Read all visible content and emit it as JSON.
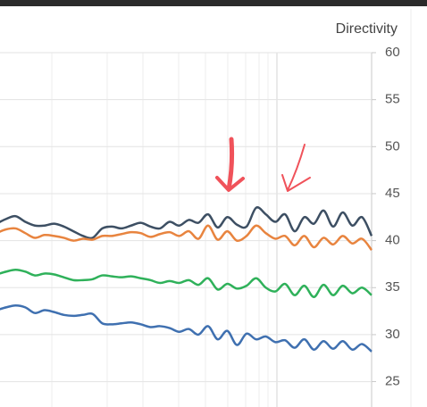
{
  "chart_data": {
    "type": "line",
    "title": "Directivity",
    "ylim": [
      22.3,
      60
    ],
    "yticks": [
      25,
      30,
      35,
      40,
      45,
      50,
      55,
      60
    ],
    "grid": true,
    "series": [
      {
        "color": "#3d4f63",
        "values": [
          41.8,
          42.3,
          42.6,
          42.0,
          41.6,
          41.6,
          41.8,
          41.5,
          41.0,
          40.5,
          40.3,
          41.3,
          41.5,
          41.3,
          41.6,
          41.9,
          41.5,
          41.3,
          42.0,
          41.6,
          42.2,
          41.9,
          42.8,
          41.4,
          42.5,
          41.7,
          41.5,
          43.5,
          42.8,
          42.0,
          42.8,
          41.0,
          42.5,
          41.8,
          43.2,
          41.5,
          43.0,
          41.6,
          42.5,
          40.5
        ]
      },
      {
        "color": "#e8843f",
        "values": [
          40.8,
          41.2,
          41.3,
          40.8,
          40.3,
          40.6,
          40.5,
          40.3,
          40.0,
          40.2,
          40.1,
          40.5,
          40.5,
          40.7,
          40.9,
          40.8,
          40.4,
          40.7,
          40.9,
          40.5,
          41.0,
          40.2,
          41.6,
          40.1,
          41.0,
          40.0,
          40.5,
          41.6,
          40.8,
          40.2,
          40.5,
          39.5,
          40.5,
          39.3,
          40.3,
          39.6,
          40.5,
          39.7,
          40.2,
          39.0
        ]
      },
      {
        "color": "#2fb15a",
        "values": [
          36.4,
          36.7,
          36.9,
          36.7,
          36.3,
          36.5,
          36.4,
          36.1,
          35.8,
          35.8,
          35.9,
          36.3,
          36.2,
          36.1,
          36.2,
          36.0,
          35.8,
          35.5,
          35.7,
          35.5,
          35.8,
          35.3,
          36.0,
          34.8,
          35.4,
          34.9,
          35.2,
          36.0,
          35.0,
          34.6,
          35.4,
          34.2,
          35.2,
          34.0,
          35.3,
          34.2,
          35.2,
          34.4,
          35.0,
          34.2
        ]
      },
      {
        "color": "#3f70b0",
        "values": [
          32.6,
          32.9,
          33.1,
          32.9,
          32.3,
          32.6,
          32.4,
          32.1,
          32.0,
          32.1,
          32.2,
          31.2,
          31.1,
          31.2,
          31.3,
          31.1,
          30.8,
          30.9,
          30.7,
          30.3,
          30.6,
          30.0,
          30.9,
          29.5,
          30.4,
          28.9,
          30.1,
          29.5,
          29.8,
          29.2,
          29.4,
          28.6,
          29.5,
          28.4,
          29.3,
          28.5,
          29.3,
          28.4,
          29.0,
          28.2
        ]
      }
    ]
  }
}
